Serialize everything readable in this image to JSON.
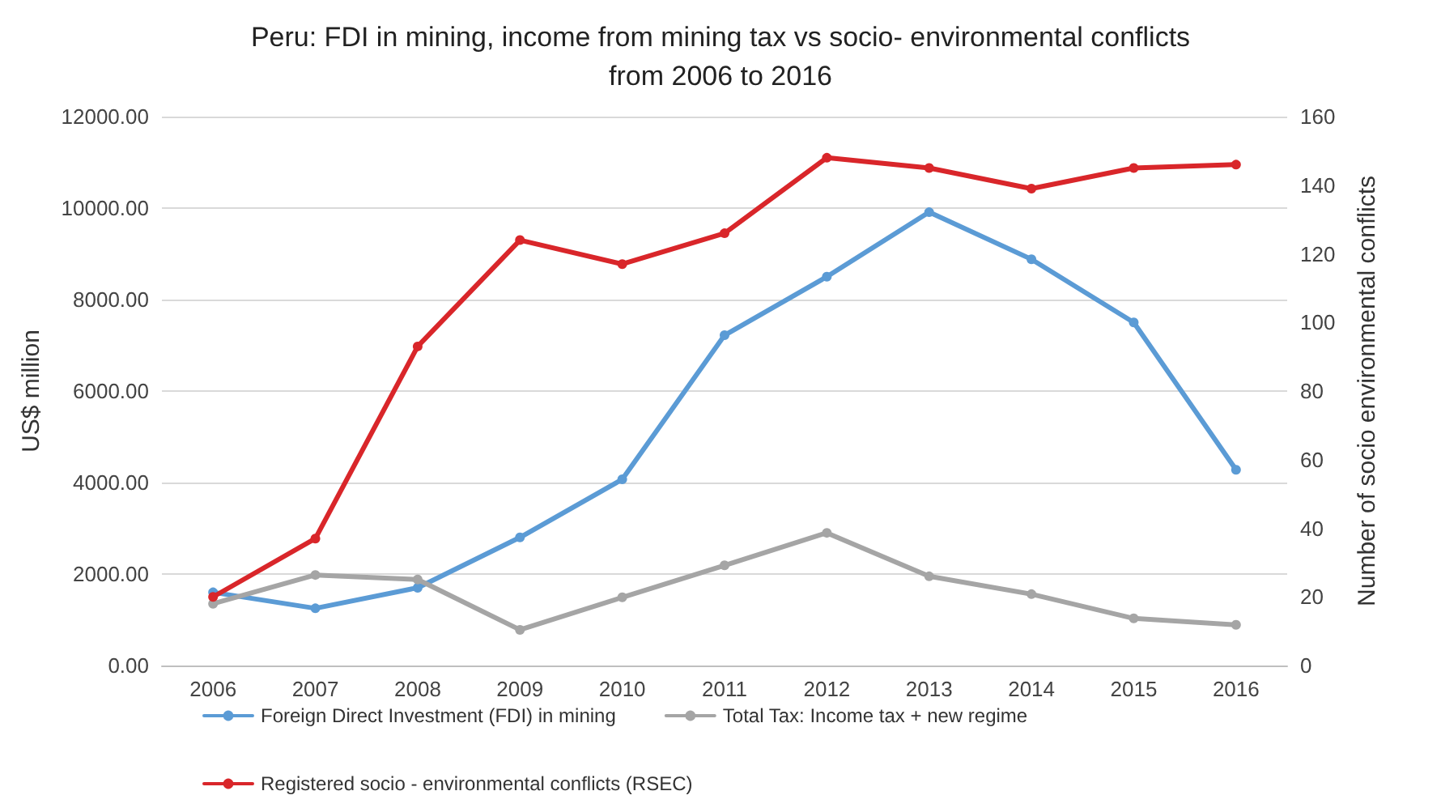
{
  "chart_data": {
    "type": "line",
    "title": "Peru: FDI in mining, income from mining tax vs socio- environmental conflicts\nfrom 2006 to 2016",
    "ylabel": "US$ million",
    "y2label": "Number of socio environmental conflicts",
    "categories": [
      "2006",
      "2007",
      "2008",
      "2009",
      "2010",
      "2011",
      "2012",
      "2013",
      "2014",
      "2015",
      "2016"
    ],
    "series": [
      {
        "name": "Foreign Direct Investment (FDI) in mining",
        "color": "#5b9bd5",
        "values": [
          1600,
          1250,
          1700,
          2800,
          4070,
          7220,
          8500,
          9910,
          8880,
          7500,
          4280
        ]
      },
      {
        "name": "Total Tax: Income tax + new regime",
        "color": "#a5a5a5",
        "values": [
          1350,
          1980,
          1880,
          780,
          1490,
          2190,
          2900,
          1950,
          1560,
          1030,
          890
        ]
      },
      {
        "name": "Registered socio - environmental conflicts (RSEC)",
        "color": "#d9262a",
        "axis": "y2",
        "values": [
          20,
          37,
          93,
          124,
          117,
          126,
          148,
          145,
          139,
          145,
          146
        ]
      }
    ],
    "ylim": [
      0,
      12000
    ],
    "yticks": [
      {
        "value": 0,
        "label": "0.00"
      },
      {
        "value": 2000,
        "label": "2000.00"
      },
      {
        "value": 4000,
        "label": "4000.00"
      },
      {
        "value": 6000,
        "label": "6000.00"
      },
      {
        "value": 8000,
        "label": "8000.00"
      },
      {
        "value": 10000,
        "label": "10000.00"
      },
      {
        "value": 12000,
        "label": "12000.00"
      }
    ],
    "y2lim": [
      0,
      160
    ],
    "y2ticks": [
      0,
      20,
      40,
      60,
      80,
      100,
      120,
      140,
      160
    ],
    "grid": "y",
    "legend": "bottom",
    "marker": "circle",
    "line_style": "solid"
  }
}
